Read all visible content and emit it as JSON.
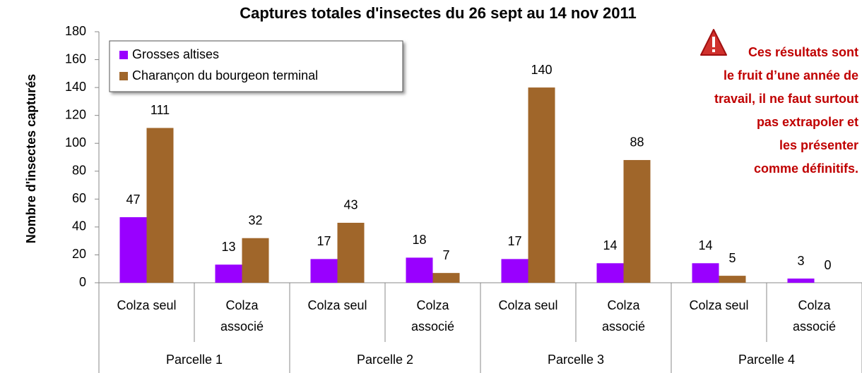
{
  "chart_data": {
    "type": "bar",
    "title": "Captures totales d'insectes du 26 sept au 14 nov 2011",
    "y_label": "Nombre d'insectes capturés",
    "categories": [
      "Colza seul",
      "Colza associé",
      "Colza seul",
      "Colza associé",
      "Colza seul",
      "Colza associé",
      "Colza seul",
      "Colza associé"
    ],
    "groups": [
      "Parcelle 1",
      "Parcelle 2",
      "Parcelle 3",
      "Parcelle 4"
    ],
    "series": [
      {
        "name": "Grosses altises",
        "color": "#9900ff",
        "values": [
          47,
          13,
          17,
          18,
          17,
          14,
          14,
          3
        ]
      },
      {
        "name": "Charançon du bourgeon terminal",
        "color": "#a0662a",
        "values": [
          111,
          32,
          43,
          7,
          140,
          88,
          5,
          0
        ]
      }
    ],
    "ylim": [
      0,
      180
    ],
    "yticks": [
      0,
      20,
      40,
      60,
      80,
      100,
      120,
      140,
      160,
      180
    ],
    "legend": "upper left",
    "annotation": [
      "Ces résultats sont",
      "le fruit d’une année de",
      "travail, il ne faut surtout",
      "pas extrapoler et",
      "les présenter",
      "comme définitifs."
    ]
  }
}
